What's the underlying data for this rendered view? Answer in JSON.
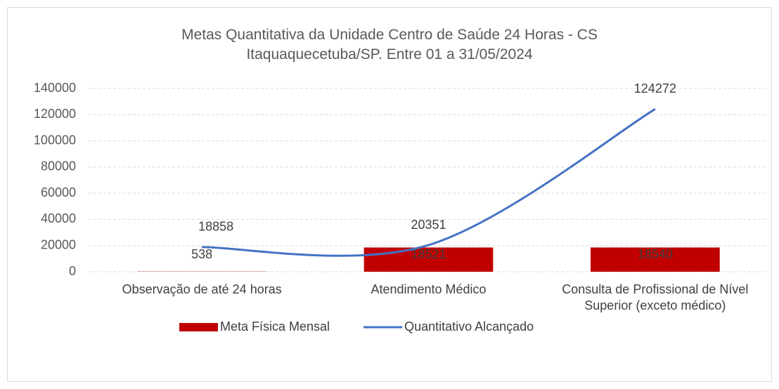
{
  "chart_data": {
    "type": "bar",
    "title": "Metas Quantitativa da Unidade Centro de Saúde 24 Horas - CS Itaquaquecetuba/SP. Entre 01 a 31/05/2024",
    "categories": [
      "Observação de até 24 horas",
      "Atendimento Médico",
      "Consulta de Profissional de Nível Superior (exceto médico)"
    ],
    "series": [
      {
        "name": "Meta Física Mensal",
        "type": "bar",
        "color": "#c00000",
        "values": [
          538,
          18521,
          18540
        ]
      },
      {
        "name": "Quantitativo Alcançado",
        "type": "line",
        "color": "#4472c4",
        "values": [
          18858,
          20351,
          124272
        ]
      }
    ],
    "ylim": [
      0,
      140000
    ],
    "yticks": [
      0,
      20000,
      40000,
      60000,
      80000,
      100000,
      120000,
      140000
    ],
    "grid": true,
    "legend": "bottom"
  }
}
